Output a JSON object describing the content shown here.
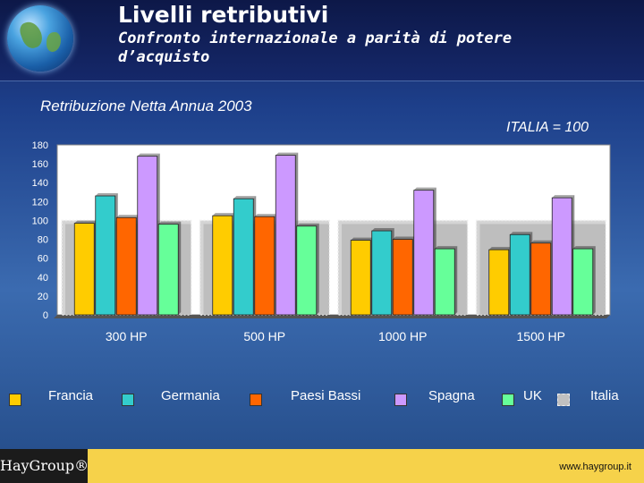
{
  "header": {
    "title": "Livelli retributivi",
    "subtitle": "Confronto internazionale a parità di potere d’acquisto"
  },
  "chart_data": {
    "type": "bar",
    "title": "Retribuzione Netta Annua 2003",
    "reference_label": "ITALIA = 100",
    "categories": [
      "300 HP",
      "500 HP",
      "1000 HP",
      "1500 HP"
    ],
    "ylim": [
      0,
      180
    ],
    "yticks": [
      0,
      20,
      40,
      60,
      80,
      100,
      120,
      140,
      160,
      180
    ],
    "series": [
      {
        "name": "Francia",
        "color": "#ffcc00",
        "values": [
          97,
          105,
          79,
          69
        ]
      },
      {
        "name": "Germania",
        "color": "#33cccc",
        "values": [
          126,
          123,
          89,
          85
        ]
      },
      {
        "name": "Paesi Bassi",
        "color": "#ff6600",
        "values": [
          103,
          104,
          80,
          76
        ]
      },
      {
        "name": "Spagna",
        "color": "#cc99ff",
        "values": [
          168,
          169,
          132,
          124
        ]
      },
      {
        "name": "UK",
        "color": "#66ff99",
        "values": [
          96,
          94,
          70,
          70
        ]
      },
      {
        "name": "Italia",
        "color": "#c0c0c0",
        "values": [
          100,
          100,
          100,
          100
        ]
      }
    ]
  },
  "footer": {
    "logo": "HayGroup®",
    "url": "www.haygroup.it"
  }
}
